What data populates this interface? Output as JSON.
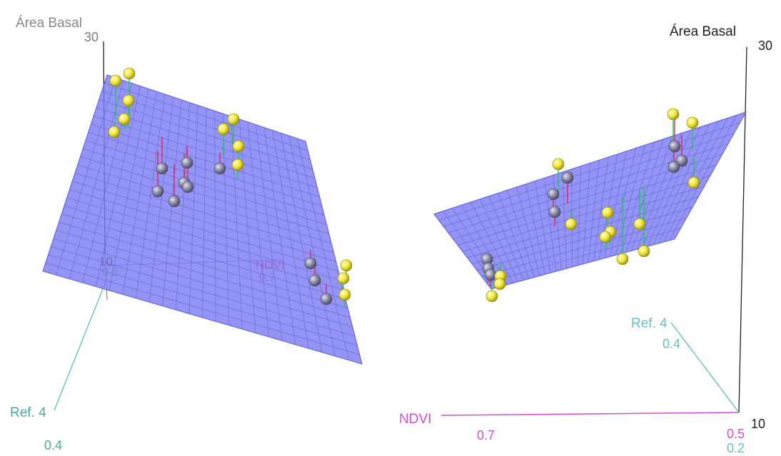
{
  "chart_data": [
    {
      "type": "scatter",
      "plot": "3d-scatter-with-regression-plane",
      "axes": {
        "z": {
          "label": "Área Basal",
          "ticks": [
            "30",
            "10"
          ]
        },
        "x": {
          "label": "NDVI",
          "ticks": [
            "0.7",
            "0.5"
          ]
        },
        "y": {
          "label": "Ref. 4",
          "ticks": [
            "0.4",
            "0.5"
          ]
        }
      },
      "colors": {
        "plane": "#7d7df2",
        "grid": "#5c5cd8",
        "above_point": "#f2e83a",
        "below_point": "#8a8aa8",
        "residual_up": "#22c55e",
        "residual_down": "#e0245e",
        "ndvi_axis": "#d04fd0",
        "ref_axis": "#5bbfbf",
        "z_axis": "#222222"
      }
    },
    {
      "type": "scatter",
      "plot": "3d-scatter-with-regression-plane",
      "axes": {
        "z": {
          "label": "Área Basal",
          "ticks": [
            "30",
            "10"
          ]
        },
        "x": {
          "label": "NDVI",
          "ticks": [
            "0.7",
            "0.5"
          ]
        },
        "y": {
          "label": "Ref. 4",
          "ticks": [
            "0.4",
            "0.2"
          ]
        }
      },
      "colors": {
        "plane": "#7d7df2",
        "grid": "#5c5cd8",
        "above_point": "#f2e83a",
        "below_point": "#8a8aa8",
        "residual_up": "#22c55e",
        "residual_down": "#e0245e",
        "ndvi_axis": "#d04fd0",
        "ref_axis": "#5bbfbf",
        "z_axis": "#222222"
      }
    }
  ]
}
